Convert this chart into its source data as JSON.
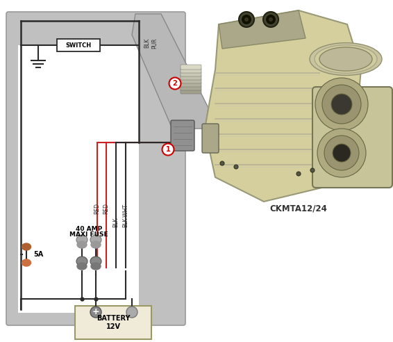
{
  "bg_color": "#ffffff",
  "gray_panel": "#c0c0c0",
  "gray_inner": "#d8d8d8",
  "white": "#ffffff",
  "wire_dark": "#2a2a2a",
  "wire_red": "#cc2222",
  "fuse_gray": "#909090",
  "fuse_dark": "#707070",
  "fuse_orange": "#c87040",
  "battery_fill": "#f0ead8",
  "battery_border": "#999966",
  "comp_body": "#d8d0a0",
  "comp_dark": "#888870",
  "comp_shadow": "#aaa888",
  "label_color": "#333333",
  "red_label": "#cc0000",
  "title": "CKMTA12/24",
  "switch_label": "SWITCH",
  "battery_label1": "BATTERY",
  "battery_label2": "12V",
  "fuse_label1": "40 AMP",
  "fuse_label2": "MAXI FUSE",
  "fuse_5a": "5A",
  "blk_label": "BLK",
  "pur_label": "PUR",
  "red_label1": "RED",
  "red_label2": "RED",
  "blk2_label": "BLK",
  "blkwht_label": "BLK-WHT",
  "conn1": "1",
  "conn2": "2"
}
